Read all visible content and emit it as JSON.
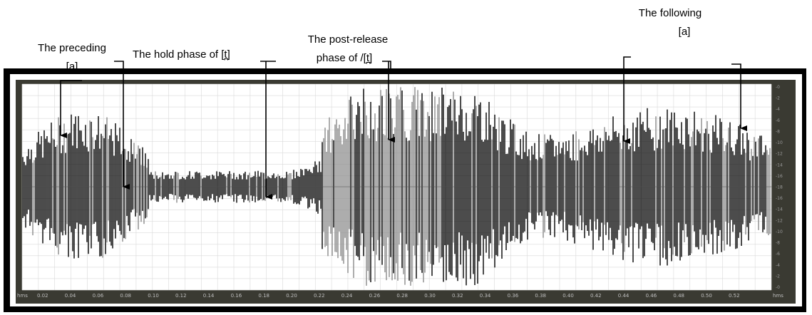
{
  "annotations": {
    "preceding_line1": "The preceding",
    "preceding_line2": "[a]",
    "hold": "The hold phase of [t̪]",
    "post_line1": "The post-release",
    "post_line2": "phase of /[t̪]",
    "following_line1": "The following",
    "following_line2": "[a]"
  },
  "waveform": {
    "time_ticks": [
      "0.02",
      "0.04",
      "0.06",
      "0.08",
      "0.10",
      "0.12",
      "0.14",
      "0.16",
      "0.18",
      "0.20",
      "0.22",
      "0.24",
      "0.26",
      "0.28",
      "0.30",
      "0.32",
      "0.34",
      "0.36",
      "0.38",
      "0.40",
      "0.42",
      "0.44",
      "0.46",
      "0.48",
      "0.50",
      "0.52"
    ],
    "left_corner": "hms",
    "right_corner": "hms",
    "amp_ticks": [
      "-0",
      "-2",
      "-4",
      "-6",
      "-8",
      "-10",
      "-12",
      "-14",
      "-16",
      "-18",
      "-16",
      "-14",
      "-12",
      "-10",
      "-8",
      "-6",
      "-4",
      "-2",
      "-0"
    ],
    "colors": {
      "background": "#ffffff",
      "grid": "#d9d9d9",
      "wave_dark": "#000000",
      "wave_gray": "#8a8a8a",
      "panel": "#3a3a32"
    }
  }
}
